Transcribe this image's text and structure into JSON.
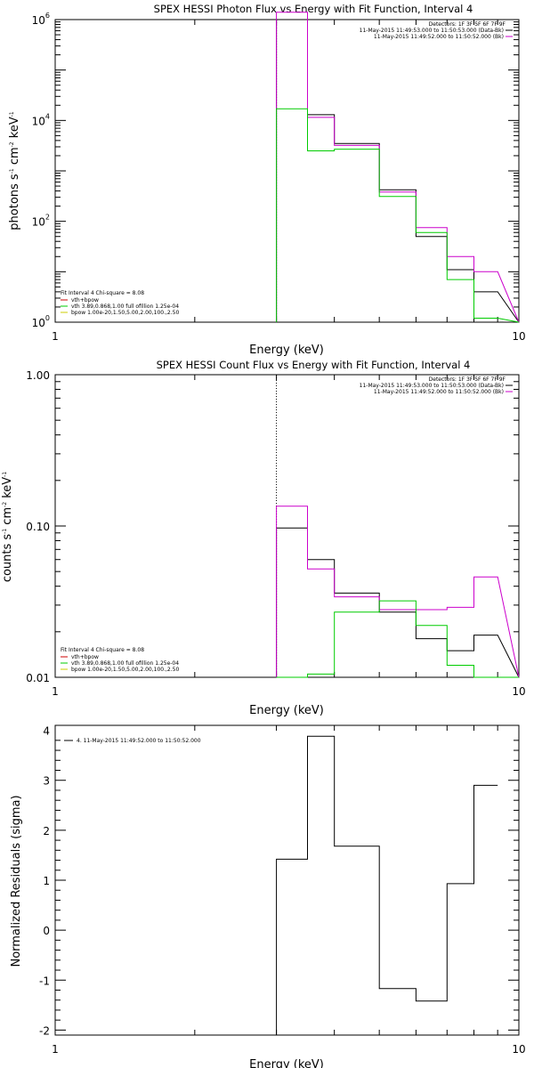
{
  "colors": {
    "observed": "#000000",
    "background": "#cc00cc",
    "vth": "#00cc00",
    "fit_total": "#cc0000",
    "bpow": "#cccc00"
  },
  "chart_data": [
    {
      "type": "line",
      "title": "SPEX HESSI Photon Flux vs Energy with Fit Function, Interval 4",
      "xlabel": "Energy (keV)",
      "ylabel_parts": [
        "photons s",
        "-1",
        " cm",
        "-2",
        " keV",
        "-1"
      ],
      "xscale": "log",
      "yscale": "log",
      "xlim": [
        1,
        10
      ],
      "ylim": [
        1,
        1000000
      ],
      "xticks": [
        {
          "v": 1,
          "label": "1"
        },
        {
          "v": 10,
          "label": "10"
        }
      ],
      "yticks": [
        {
          "v": 1,
          "m": "10",
          "e": "0"
        },
        {
          "v": 100,
          "m": "10",
          "e": "2"
        },
        {
          "v": 10000,
          "m": "10",
          "e": "4"
        },
        {
          "v": 1000000,
          "m": "10",
          "e": "6"
        }
      ],
      "vline": 3.0,
      "legend_top": [
        "Detectors: 1F 3F 5F 6F 7F 9F",
        "11-May-2015 11:49:53.000 to 11:50:53.000 (Data-Bk)",
        "11-May-2015 11:49:52.000 to 11:50:52.000 (Bk)"
      ],
      "legend_bottom_title": "Fit Interval 4   Chi-square = 8.08",
      "legend_bottom": [
        "vth+bpow",
        "vth 3.89,0.868,1.00  full ofillion 1.25e-04",
        "bpow 1.00e-20,1.50,5.00,2.00,100.,2.50"
      ],
      "bin_edges": [
        3.0,
        3.5,
        4.0,
        5.0,
        6.0,
        7.0,
        8.0,
        9.0,
        10.0
      ],
      "series": [
        {
          "name": "11-May-2015 11:49:53.000 to 11:50:53.000 (Data-Bk)",
          "color": "#000000",
          "values": [
            1000000,
            13000,
            3500,
            420,
            50,
            11,
            4
          ]
        },
        {
          "name": "11-May-2015 11:49:52.000 to 11:50:52.000 (Bk)",
          "color": "#cc00cc",
          "values": [
            1400000,
            11500,
            3200,
            380,
            75,
            20,
            10
          ]
        },
        {
          "name": "vth 3.89,0.868,1.00  full ofillion 1.25e-04",
          "color": "#00cc00",
          "values": [
            17000,
            2500,
            2700,
            310,
            60,
            7,
            1.2
          ]
        }
      ]
    },
    {
      "type": "line",
      "title": "SPEX HESSI Count Flux vs Energy with Fit Function, Interval 4",
      "xlabel": "Energy (keV)",
      "ylabel_parts": [
        "counts s",
        "-1",
        " cm",
        "-2",
        " keV",
        "-1"
      ],
      "xscale": "log",
      "yscale": "log",
      "xlim": [
        1,
        10
      ],
      "ylim": [
        0.01,
        1.0
      ],
      "xticks": [
        {
          "v": 1,
          "label": "1"
        },
        {
          "v": 10,
          "label": "10"
        }
      ],
      "yticks": [
        {
          "v": 0.01,
          "label": "0.01"
        },
        {
          "v": 0.1,
          "label": "0.10"
        },
        {
          "v": 1.0,
          "label": "1.00"
        }
      ],
      "vline": 3.0,
      "legend_top": [
        "Detectors: 1F 3F 5F 6F 7F 9F",
        "11-May-2015 11:49:53.000 to 11:50:53.000 (Data-Bk)",
        "11-May-2015 11:49:52.000 to 11:50:52.000 (Bk)"
      ],
      "legend_bottom_title": "Fit Interval 4   Chi-square = 8.08",
      "legend_bottom": [
        "vth+bpow",
        "vth 3.89,0.868,1.00  full ofillion 1.25e-04",
        "bpow 1.00e-20,1.50,5.00,2.00,100.,2.50"
      ],
      "bin_edges": [
        3.0,
        3.5,
        4.0,
        5.0,
        6.0,
        7.0,
        8.0,
        9.0,
        10.0
      ],
      "series": [
        {
          "name": "11-May-2015 11:49:53.000 to 11:50:53.000 (Data-Bk)",
          "color": "#000000",
          "values": [
            0.097,
            0.06,
            0.036,
            0.027,
            0.018,
            0.015,
            0.019
          ]
        },
        {
          "name": "11-May-2015 11:49:52.000 to 11:50:52.000 (Bk)",
          "color": "#cc00cc",
          "values": [
            0.135,
            0.052,
            0.034,
            0.028,
            0.028,
            0.029,
            0.046
          ]
        },
        {
          "name": "vth 3.89,0.868,1.00  full ofillion 1.25e-04",
          "color": "#00cc00",
          "values": [
            0.004,
            0.0105,
            0.027,
            0.032,
            0.022,
            0.012,
            0.007
          ]
        }
      ]
    },
    {
      "type": "line",
      "title": "",
      "xlabel": "Energy (keV)",
      "ylabel": "Normalized Residuals (sigma)",
      "xscale": "log",
      "yscale": "linear",
      "xlim": [
        1,
        10
      ],
      "ylim": [
        -2.1,
        4.1
      ],
      "xticks": [
        {
          "v": 1,
          "label": "1"
        },
        {
          "v": 10,
          "label": "10"
        }
      ],
      "yticks": [
        {
          "v": -2,
          "label": "-2"
        },
        {
          "v": -1,
          "label": "-1"
        },
        {
          "v": 0,
          "label": "0"
        },
        {
          "v": 1,
          "label": "1"
        },
        {
          "v": 2,
          "label": "2"
        },
        {
          "v": 3,
          "label": "3"
        },
        {
          "v": 4,
          "label": "4"
        }
      ],
      "legend": "4. 11-May-2015 11:49:52.000 to 11:50:52.000",
      "bin_edges": [
        3.0,
        3.5,
        4.0,
        5.0,
        6.0,
        7.0,
        8.0,
        9.0,
        10.0
      ],
      "series": [
        {
          "name": "4. 11-May-2015 11:49:52.000 to 11:50:52.000",
          "color": "#000000",
          "values": [
            1.42,
            3.88,
            1.68,
            -1.17,
            -1.42,
            0.93,
            2.9
          ]
        }
      ]
    }
  ]
}
